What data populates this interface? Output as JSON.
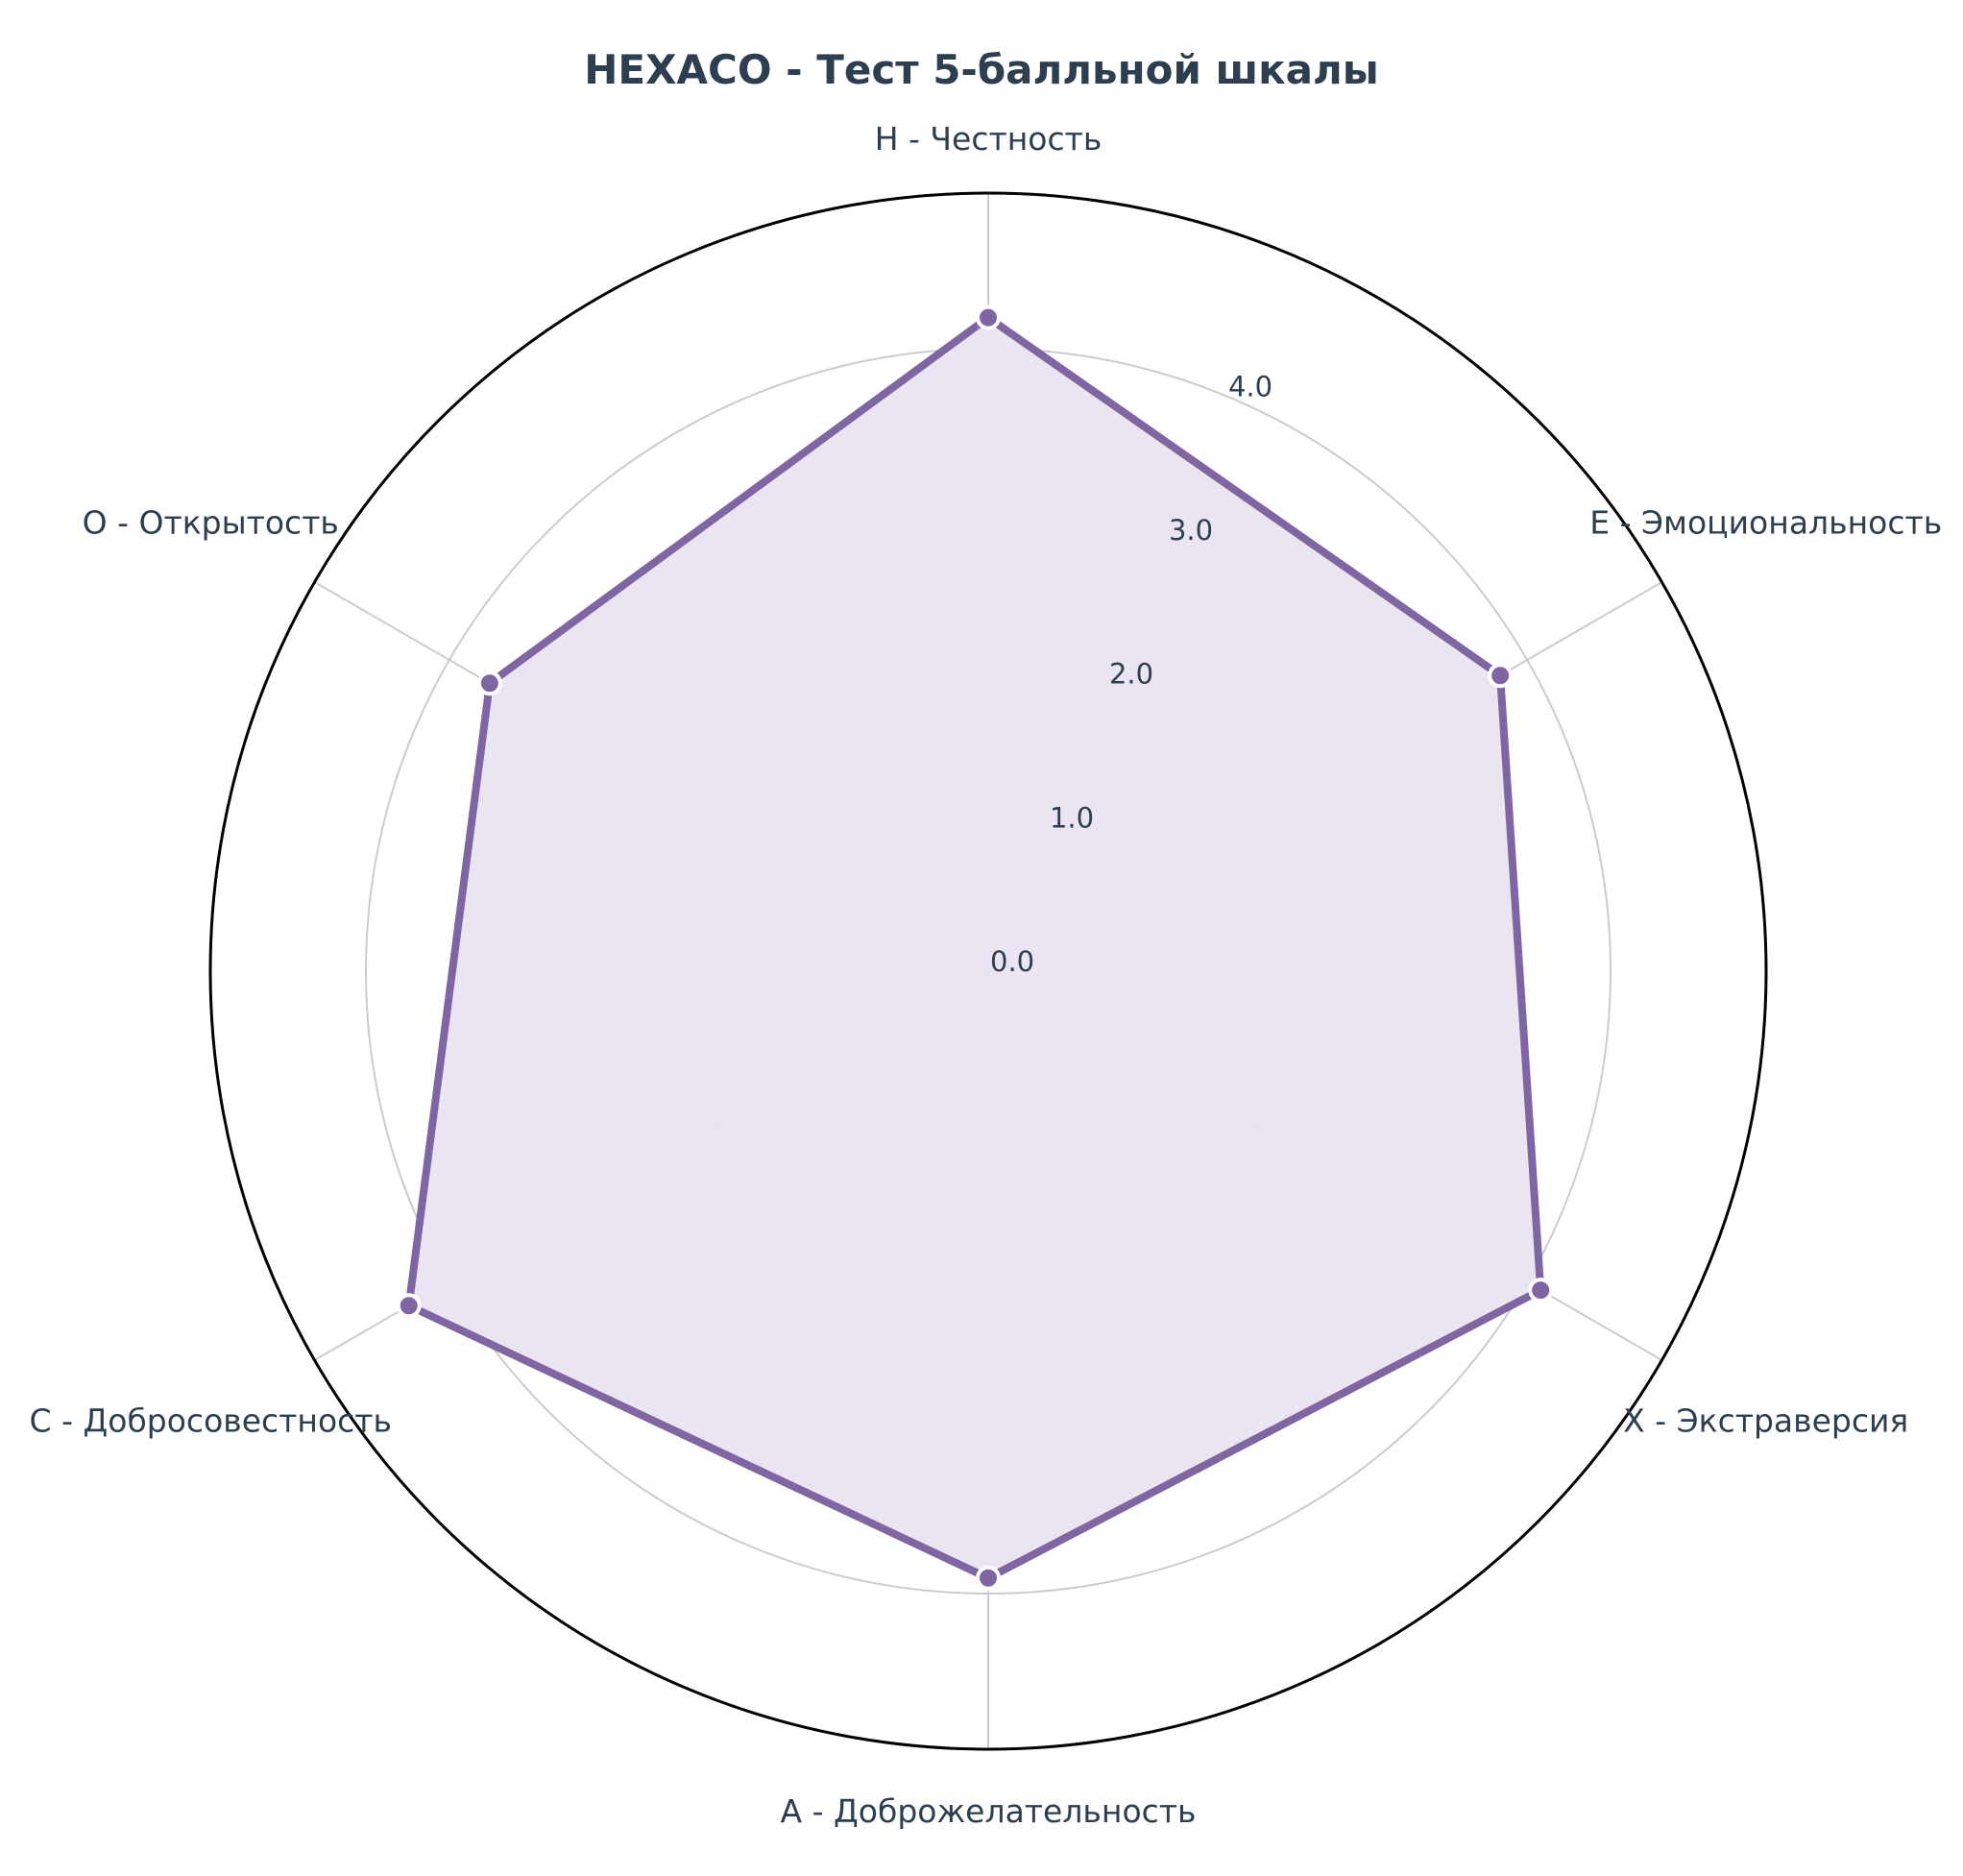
{
  "chart_data": {
    "type": "radar",
    "title": "HEXACO - Тест 5-балльной шкалы",
    "axes": [
      "H - Честность",
      "E - Эмоциональность",
      "X - Экстраверсия",
      "A - Доброжелательность",
      "C - Добросовестность",
      "O - Открытость"
    ],
    "values": [
      4.2,
      3.8,
      4.1,
      3.9,
      4.3,
      3.7
    ],
    "r_ticks": [
      "0.0",
      "1.0",
      "2.0",
      "3.0",
      "4.0"
    ],
    "rlim": [
      0,
      5
    ],
    "grid": true,
    "colors": {
      "series_line": "#7f66a3",
      "series_fill": "#e9e4ef",
      "grid": "#cccccc",
      "outer_ring": "#000000",
      "text": "#2c3e50"
    }
  }
}
